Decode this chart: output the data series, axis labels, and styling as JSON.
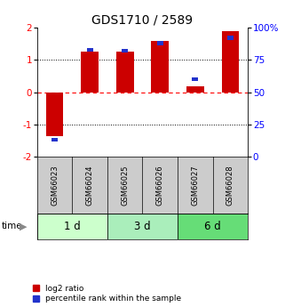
{
  "title": "GDS1710 / 2589",
  "samples": [
    "GSM66023",
    "GSM66024",
    "GSM66025",
    "GSM66026",
    "GSM66027",
    "GSM66028"
  ],
  "log2_ratio": [
    -1.35,
    1.25,
    1.25,
    1.58,
    0.18,
    1.88
  ],
  "percentile_rank": [
    13,
    83,
    82,
    88,
    60,
    92
  ],
  "time_groups": [
    {
      "label": "1 d",
      "samples": [
        0,
        1
      ],
      "color": "#ccffcc"
    },
    {
      "label": "3 d",
      "samples": [
        2,
        3
      ],
      "color": "#aaeebb"
    },
    {
      "label": "6 d",
      "samples": [
        4,
        5
      ],
      "color": "#66dd77"
    }
  ],
  "bar_color_red": "#cc0000",
  "bar_color_blue": "#2233cc",
  "left_ylim": [
    -2,
    2
  ],
  "right_ylim": [
    0,
    100
  ],
  "left_yticks": [
    -2,
    -1,
    0,
    1,
    2
  ],
  "right_yticks": [
    0,
    25,
    50,
    75,
    100
  ],
  "right_yticklabels": [
    "0",
    "25",
    "50",
    "75",
    "100%"
  ],
  "hline_dotted": [
    -1,
    1
  ],
  "hline_dashed": [
    0
  ],
  "background_color": "#ffffff",
  "sample_label_bg": "#cccccc",
  "legend_red_label": "log2 ratio",
  "legend_blue_label": "percentile rank within the sample",
  "bar_width": 0.5,
  "blue_marker_size": 0.18
}
